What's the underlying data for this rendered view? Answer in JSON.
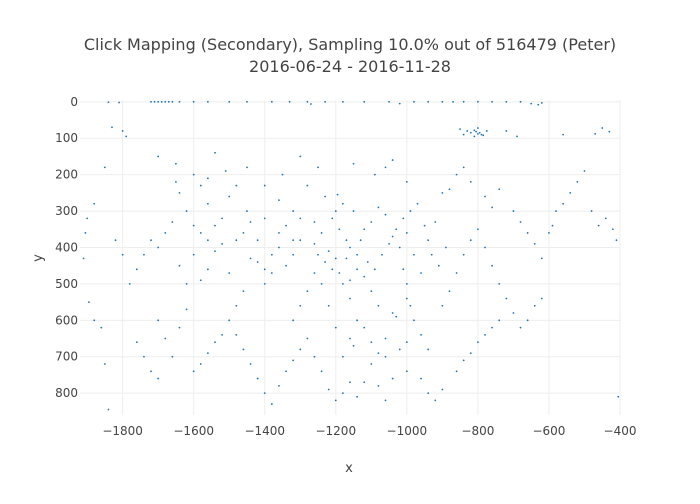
{
  "chart_data": {
    "type": "scatter",
    "title": "Click Mapping (Secondary), Sampling 10.0% out of 516479 (Peter)",
    "subtitle": "2016-06-24 - 2016-11-28",
    "xlabel": "x",
    "ylabel": "y",
    "xlim": [
      -1920,
      -400
    ],
    "ylim": [
      860,
      -5
    ],
    "y_reversed": true,
    "grid": true,
    "x_ticks": [
      -1800,
      -1600,
      -1400,
      -1200,
      -1000,
      -800,
      -600,
      -400
    ],
    "y_ticks": [
      0,
      100,
      200,
      300,
      400,
      500,
      600,
      700,
      800
    ],
    "x_tick_labels": [
      "−1800",
      "−1600",
      "−1400",
      "−1200",
      "−1000",
      "−800",
      "−600",
      "−400"
    ],
    "y_tick_labels": [
      "0",
      "100",
      "200",
      "300",
      "400",
      "500",
      "600",
      "700",
      "800"
    ],
    "marker_color": "#1f77b4",
    "points": [
      [
        -1720,
        0
      ],
      [
        -1710,
        0
      ],
      [
        -1700,
        0
      ],
      [
        -1690,
        0
      ],
      [
        -1680,
        0
      ],
      [
        -1670,
        0
      ],
      [
        -1660,
        0
      ],
      [
        -1640,
        0
      ],
      [
        -1600,
        0
      ],
      [
        -1560,
        0
      ],
      [
        -1500,
        0
      ],
      [
        -1450,
        0
      ],
      [
        -1380,
        0
      ],
      [
        -1330,
        0
      ],
      [
        -1280,
        0
      ],
      [
        -1230,
        0
      ],
      [
        -1180,
        0
      ],
      [
        -1120,
        0
      ],
      [
        -1050,
        0
      ],
      [
        -980,
        0
      ],
      [
        -940,
        0
      ],
      [
        -900,
        0
      ],
      [
        -870,
        0
      ],
      [
        -840,
        0
      ],
      [
        -800,
        0
      ],
      [
        -760,
        0
      ],
      [
        -720,
        0
      ],
      [
        -680,
        0
      ],
      [
        -650,
        5
      ],
      [
        -630,
        8
      ],
      [
        -620,
        3
      ],
      [
        -1810,
        2
      ],
      [
        -1840,
        1
      ],
      [
        -1270,
        6
      ],
      [
        -1020,
        5
      ],
      [
        -810,
        78
      ],
      [
        -805,
        82
      ],
      [
        -800,
        88
      ],
      [
        -795,
        85
      ],
      [
        -790,
        90
      ],
      [
        -820,
        85
      ],
      [
        -830,
        80
      ],
      [
        -785,
        92
      ],
      [
        -840,
        90
      ],
      [
        -775,
        80
      ],
      [
        -850,
        75
      ],
      [
        -810,
        95
      ],
      [
        -800,
        72
      ],
      [
        -430,
        82
      ],
      [
        -450,
        72
      ],
      [
        -470,
        88
      ],
      [
        -560,
        90
      ],
      [
        -720,
        80
      ],
      [
        -690,
        95
      ],
      [
        -1800,
        80
      ],
      [
        -1790,
        95
      ],
      [
        -1830,
        70
      ],
      [
        -1700,
        150
      ],
      [
        -1650,
        170
      ],
      [
        -1540,
        140
      ],
      [
        -1850,
        180
      ],
      [
        -1880,
        280
      ],
      [
        -1900,
        320
      ],
      [
        -1905,
        360
      ],
      [
        -1910,
        430
      ],
      [
        -1895,
        550
      ],
      [
        -1880,
        600
      ],
      [
        -1860,
        620
      ],
      [
        -1850,
        720
      ],
      [
        -1840,
        845
      ],
      [
        -1200,
        300
      ],
      [
        -1210,
        320
      ],
      [
        -1190,
        350
      ],
      [
        -1180,
        280
      ],
      [
        -1220,
        410
      ],
      [
        -1200,
        430
      ],
      [
        -1170,
        380
      ],
      [
        -1150,
        300
      ],
      [
        -1240,
        360
      ],
      [
        -1260,
        330
      ],
      [
        -1230,
        260
      ],
      [
        -1195,
        255
      ],
      [
        -1140,
        420
      ],
      [
        -1120,
        350
      ],
      [
        -1100,
        330
      ],
      [
        -1080,
        290
      ],
      [
        -1060,
        310
      ],
      [
        -1040,
        370
      ],
      [
        -1020,
        400
      ],
      [
        -1000,
        360
      ],
      [
        -980,
        420
      ],
      [
        -960,
        470
      ],
      [
        -940,
        380
      ],
      [
        -920,
        330
      ],
      [
        -1300,
        380
      ],
      [
        -1320,
        420
      ],
      [
        -1340,
        450
      ],
      [
        -1360,
        400
      ],
      [
        -1380,
        470
      ],
      [
        -1400,
        500
      ],
      [
        -1420,
        380
      ],
      [
        -1440,
        430
      ],
      [
        -1460,
        520
      ],
      [
        -1480,
        560
      ],
      [
        -1500,
        470
      ],
      [
        -1520,
        390
      ],
      [
        -1540,
        410
      ],
      [
        -1560,
        460
      ],
      [
        -1580,
        490
      ],
      [
        -1600,
        420
      ],
      [
        -1620,
        300
      ],
      [
        -1640,
        250
      ],
      [
        -1580,
        230
      ],
      [
        -1560,
        280
      ],
      [
        -1500,
        260
      ],
      [
        -1450,
        300
      ],
      [
        -1400,
        320
      ],
      [
        -1360,
        270
      ],
      [
        -1320,
        300
      ],
      [
        -1280,
        230
      ],
      [
        -1180,
        500
      ],
      [
        -1160,
        540
      ],
      [
        -1140,
        600
      ],
      [
        -1200,
        620
      ],
      [
        -1220,
        560
      ],
      [
        -1240,
        500
      ],
      [
        -1260,
        470
      ],
      [
        -1280,
        520
      ],
      [
        -1300,
        560
      ],
      [
        -1320,
        600
      ],
      [
        -1160,
        650
      ],
      [
        -1150,
        670
      ],
      [
        -1180,
        700
      ],
      [
        -1100,
        720
      ],
      [
        -1060,
        650
      ],
      [
        -1040,
        580
      ],
      [
        -1000,
        540
      ],
      [
        -980,
        600
      ],
      [
        -960,
        640
      ],
      [
        -940,
        680
      ],
      [
        -900,
        560
      ],
      [
        -880,
        520
      ],
      [
        -860,
        470
      ],
      [
        -840,
        420
      ],
      [
        -820,
        380
      ],
      [
        -800,
        350
      ],
      [
        -780,
        400
      ],
      [
        -760,
        450
      ],
      [
        -740,
        500
      ],
      [
        -720,
        540
      ],
      [
        -700,
        300
      ],
      [
        -680,
        330
      ],
      [
        -660,
        360
      ],
      [
        -640,
        390
      ],
      [
        -620,
        430
      ],
      [
        -600,
        360
      ],
      [
        -590,
        340
      ],
      [
        -580,
        300
      ],
      [
        -560,
        280
      ],
      [
        -540,
        250
      ],
      [
        -520,
        220
      ],
      [
        -500,
        190
      ],
      [
        -480,
        300
      ],
      [
        -460,
        340
      ],
      [
        -440,
        320
      ],
      [
        -420,
        350
      ],
      [
        -410,
        380
      ],
      [
        -405,
        810
      ],
      [
        -900,
        250
      ],
      [
        -880,
        240
      ],
      [
        -860,
        200
      ],
      [
        -840,
        180
      ],
      [
        -820,
        220
      ],
      [
        -780,
        260
      ],
      [
        -760,
        290
      ],
      [
        -740,
        240
      ],
      [
        -1500,
        600
      ],
      [
        -1480,
        640
      ],
      [
        -1460,
        680
      ],
      [
        -1440,
        720
      ],
      [
        -1420,
        760
      ],
      [
        -1400,
        800
      ],
      [
        -1380,
        830
      ],
      [
        -1360,
        780
      ],
      [
        -1340,
        740
      ],
      [
        -1320,
        710
      ],
      [
        -1300,
        680
      ],
      [
        -1280,
        650
      ],
      [
        -1260,
        700
      ],
      [
        -1240,
        740
      ],
      [
        -1220,
        790
      ],
      [
        -1200,
        820
      ],
      [
        -1180,
        800
      ],
      [
        -1160,
        770
      ],
      [
        -1140,
        810
      ],
      [
        -1120,
        770
      ],
      [
        -1080,
        780
      ],
      [
        -1060,
        820
      ],
      [
        -1040,
        760
      ],
      [
        -1000,
        740
      ],
      [
        -960,
        760
      ],
      [
        -940,
        800
      ],
      [
        -920,
        820
      ],
      [
        -900,
        790
      ],
      [
        -860,
        740
      ],
      [
        -840,
        710
      ],
      [
        -820,
        690
      ],
      [
        -800,
        660
      ],
      [
        -780,
        640
      ],
      [
        -760,
        620
      ],
      [
        -740,
        600
      ],
      [
        -700,
        580
      ],
      [
        -680,
        620
      ],
      [
        -660,
        600
      ],
      [
        -640,
        560
      ],
      [
        -620,
        540
      ],
      [
        -1700,
        400
      ],
      [
        -1680,
        360
      ],
      [
        -1660,
        330
      ],
      [
        -1640,
        450
      ],
      [
        -1620,
        500
      ],
      [
        -1700,
        600
      ],
      [
        -1680,
        650
      ],
      [
        -1660,
        700
      ],
      [
        -1640,
        620
      ],
      [
        -1620,
        570
      ],
      [
        -1780,
        500
      ],
      [
        -1760,
        460
      ],
      [
        -1740,
        420
      ],
      [
        -1720,
        380
      ],
      [
        -1800,
        420
      ],
      [
        -1820,
        380
      ],
      [
        -1760,
        660
      ],
      [
        -1740,
        700
      ],
      [
        -1720,
        740
      ],
      [
        -1700,
        760
      ],
      [
        -1600,
        740
      ],
      [
        -1580,
        720
      ],
      [
        -1560,
        690
      ],
      [
        -1540,
        660
      ],
      [
        -1520,
        640
      ],
      [
        -1600,
        340
      ],
      [
        -1580,
        360
      ],
      [
        -1560,
        380
      ],
      [
        -1540,
        340
      ],
      [
        -1520,
        320
      ],
      [
        -1480,
        380
      ],
      [
        -1460,
        360
      ],
      [
        -1440,
        330
      ],
      [
        -1420,
        440
      ],
      [
        -1400,
        460
      ],
      [
        -1380,
        420
      ],
      [
        -1360,
        360
      ],
      [
        -1340,
        340
      ],
      [
        -1320,
        380
      ],
      [
        -1300,
        320
      ],
      [
        -1260,
        390
      ],
      [
        -1250,
        420
      ],
      [
        -1230,
        440
      ],
      [
        -1210,
        460
      ],
      [
        -1190,
        470
      ],
      [
        -1170,
        430
      ],
      [
        -1160,
        400
      ],
      [
        -1130,
        380
      ],
      [
        -1110,
        440
      ],
      [
        -1090,
        460
      ],
      [
        -1070,
        420
      ],
      [
        -1050,
        390
      ],
      [
        -1030,
        350
      ],
      [
        -1010,
        320
      ],
      [
        -990,
        300
      ],
      [
        -970,
        280
      ],
      [
        -950,
        340
      ],
      [
        -930,
        420
      ],
      [
        -910,
        450
      ],
      [
        -890,
        400
      ],
      [
        -1090,
        200
      ],
      [
        -1060,
        180
      ],
      [
        -1040,
        160
      ],
      [
        -1000,
        220
      ],
      [
        -1150,
        170
      ],
      [
        -1250,
        180
      ],
      [
        -1300,
        150
      ],
      [
        -1350,
        200
      ],
      [
        -1400,
        230
      ],
      [
        -1450,
        180
      ],
      [
        -1600,
        200
      ],
      [
        -1650,
        220
      ],
      [
        -1560,
        210
      ],
      [
        -1510,
        190
      ],
      [
        -1480,
        230
      ],
      [
        -1010,
        460
      ],
      [
        -1000,
        500
      ],
      [
        -990,
        560
      ],
      [
        -1030,
        590
      ],
      [
        -1080,
        560
      ],
      [
        -1100,
        520
      ],
      [
        -1120,
        480
      ],
      [
        -1140,
        460
      ],
      [
        -1160,
        490
      ],
      [
        -1120,
        620
      ],
      [
        -1100,
        660
      ],
      [
        -1080,
        690
      ],
      [
        -1060,
        700
      ],
      [
        -1020,
        680
      ],
      [
        -1000,
        660
      ]
    ]
  }
}
